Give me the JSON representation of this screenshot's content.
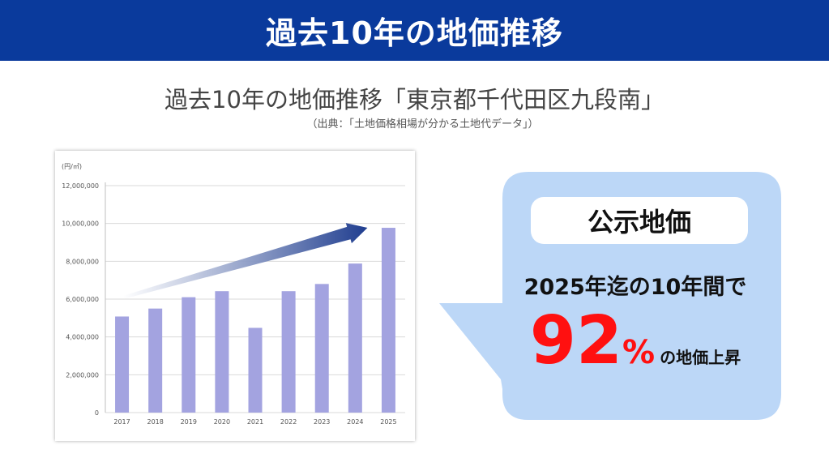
{
  "banner": {
    "title": "過去10年の地価推移"
  },
  "subtitle": "過去10年の地価推移「東京都千代田区九段南」",
  "source": "（出典：「土地価格相場が分かる土地代データ」）",
  "callout": {
    "label": "公示地価",
    "line1": "2025年迄の10年間で",
    "number": "92",
    "unit": "%",
    "suffix": "の地価上昇",
    "fill_color": "#bcd7f7",
    "accent_color": "#ff1010"
  },
  "chart_data": {
    "type": "bar",
    "unit_label": "(円/㎡)",
    "categories": [
      "2017",
      "2018",
      "2019",
      "2020",
      "2021",
      "2022",
      "2023",
      "2024",
      "2025"
    ],
    "values": [
      5080000,
      5500000,
      6100000,
      6420000,
      4480000,
      6420000,
      6800000,
      7880000,
      9770000
    ],
    "ylim": [
      0,
      12000000
    ],
    "yticks": [
      "0",
      "2,000,000",
      "4,000,000",
      "6,000,000",
      "8,000,000",
      "10,000,000",
      "12,000,000"
    ],
    "ytick_values": [
      0,
      2000000,
      4000000,
      6000000,
      8000000,
      10000000,
      12000000
    ],
    "bar_color": "#a3a3e0",
    "grid": true,
    "trend_arrow_color": "#1f3d8f"
  }
}
